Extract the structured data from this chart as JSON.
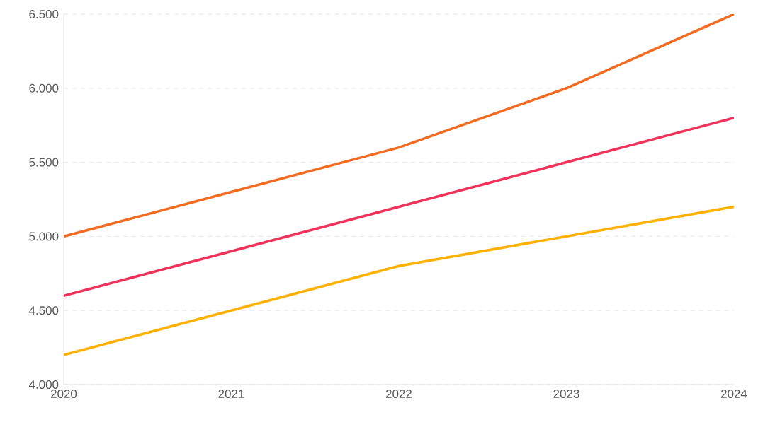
{
  "chart_data": {
    "type": "line",
    "categories": [
      "2020",
      "2021",
      "2022",
      "2023",
      "2024"
    ],
    "series": [
      {
        "color": "#f26b21",
        "values": [
          5000,
          5300,
          5600,
          6000,
          6500
        ]
      },
      {
        "color": "#f0325a",
        "values": [
          4600,
          4900,
          5200,
          5500,
          5800
        ]
      },
      {
        "color": "#ffb000",
        "values": [
          4200,
          4500,
          4800,
          5000,
          5200
        ]
      }
    ],
    "ylim": [
      4000,
      6500
    ],
    "yticks": [
      {
        "value": 4000,
        "label": "4.000"
      },
      {
        "value": 4500,
        "label": "4.500"
      },
      {
        "value": 5000,
        "label": "5.000"
      },
      {
        "value": 5500,
        "label": "5.500"
      },
      {
        "value": 6000,
        "label": "6.000"
      },
      {
        "value": 6500,
        "label": "6.500"
      }
    ],
    "grid": "y",
    "marker": "none",
    "line_style": "solid"
  }
}
